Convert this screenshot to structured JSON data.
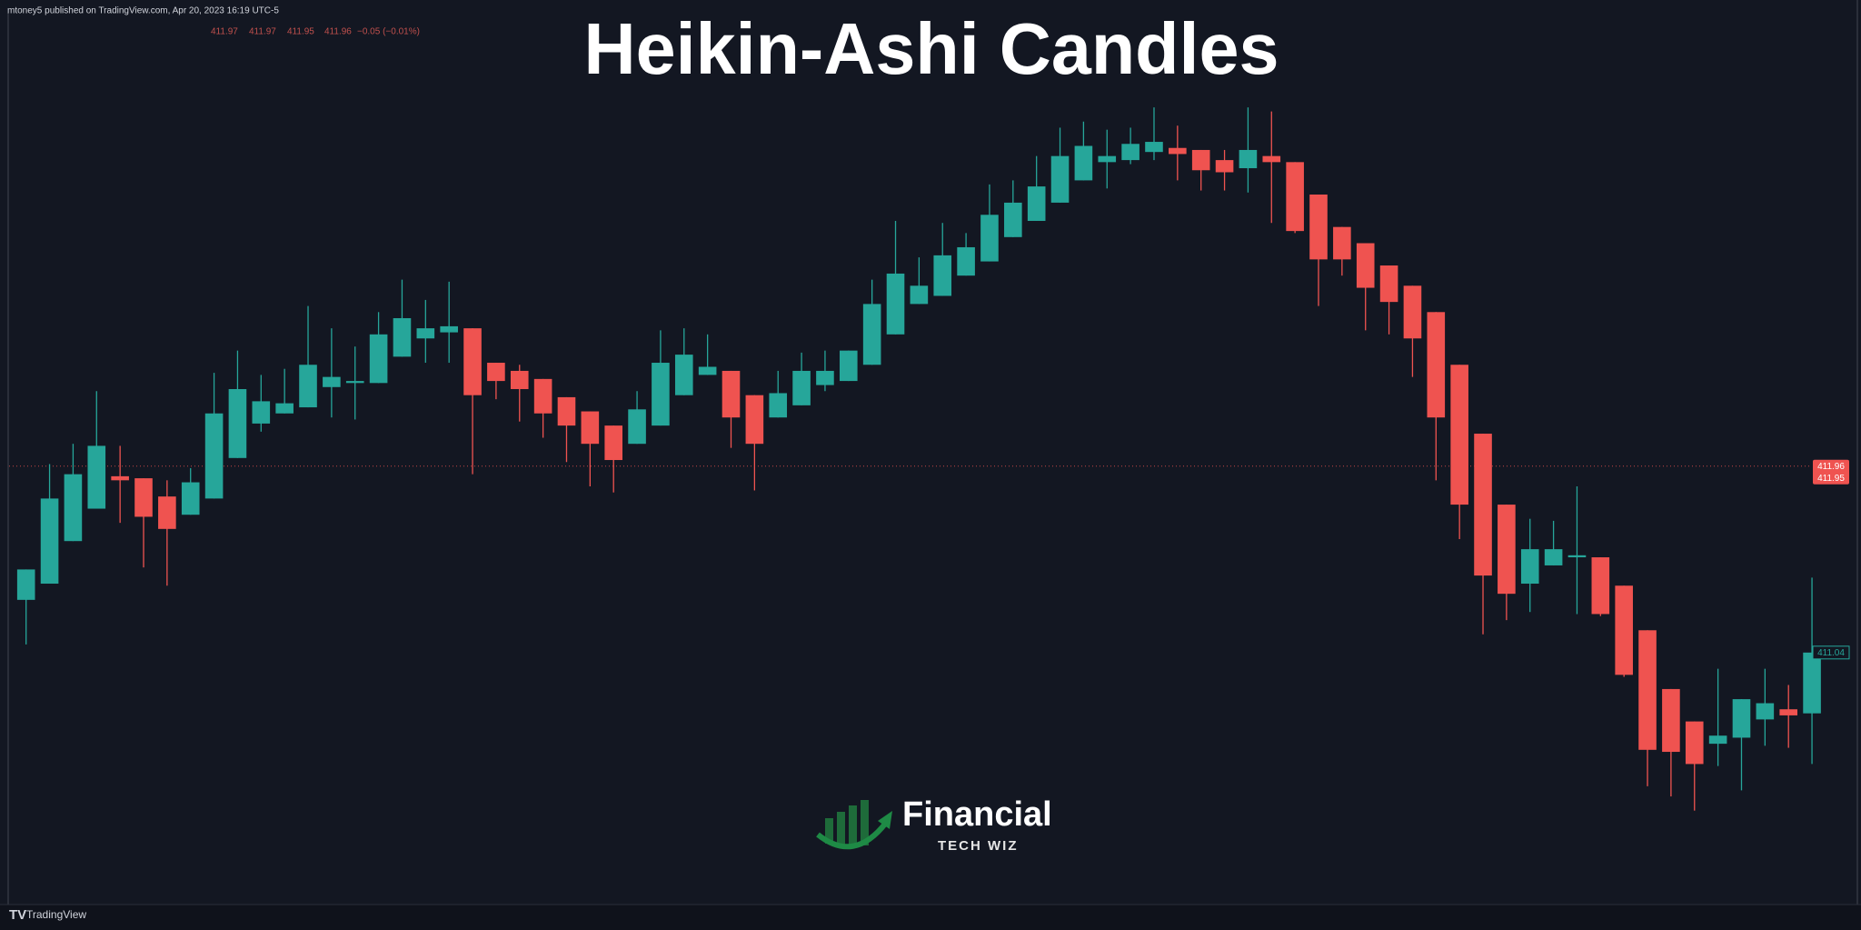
{
  "chart_data": {
    "type": "candlestick",
    "title": "Heikin-Ashi Candles",
    "publisher_note": "mtoney5 published on TradingView.com, Apr 20, 2023 16:19 UTC-5",
    "legend": {
      "open": 411.97,
      "high": 411.97,
      "low": 411.95,
      "close": 411.96,
      "change": "−0.05 (−0.01%)"
    },
    "open": [
      411.3,
      411.38,
      411.59,
      411.75,
      411.91,
      411.9,
      411.81,
      411.72,
      411.8,
      412.0,
      412.17,
      412.22,
      412.25,
      412.35,
      412.37,
      412.37,
      412.5,
      412.59,
      412.62,
      412.64,
      412.47,
      412.43,
      412.39,
      412.3,
      412.23,
      412.16,
      412.07,
      412.16,
      412.31,
      412.41,
      412.43,
      412.31,
      412.2,
      412.26,
      412.36,
      412.38,
      412.46,
      412.61,
      412.76,
      412.8,
      412.9,
      412.97,
      413.09,
      413.17,
      413.26,
      413.37,
      413.46,
      413.47,
      413.51,
      413.53,
      413.52,
      413.47,
      413.43,
      413.49,
      413.46,
      413.3,
      413.14,
      413.06,
      412.95,
      412.85,
      412.72,
      412.46,
      412.12,
      411.77,
      411.38,
      411.47,
      411.51,
      411.51,
      411.37,
      411.15,
      410.86,
      410.7,
      410.59,
      410.62,
      410.71,
      410.76,
      410.74
    ],
    "high": [
      411.45,
      411.97,
      412.07,
      412.33,
      412.06,
      411.9,
      411.89,
      411.95,
      412.42,
      412.53,
      412.41,
      412.44,
      412.75,
      412.64,
      412.55,
      412.72,
      412.88,
      412.78,
      412.87,
      412.64,
      412.47,
      412.46,
      412.39,
      412.3,
      412.23,
      412.16,
      412.33,
      412.63,
      412.64,
      412.61,
      412.43,
      412.31,
      412.43,
      412.52,
      412.53,
      412.53,
      412.88,
      413.17,
      412.99,
      413.16,
      413.11,
      413.35,
      413.37,
      413.49,
      413.63,
      413.66,
      413.62,
      413.63,
      413.73,
      413.64,
      413.52,
      413.52,
      413.73,
      413.71,
      413.46,
      413.3,
      413.14,
      413.06,
      412.95,
      412.85,
      412.72,
      412.46,
      412.12,
      411.77,
      411.7,
      411.69,
      411.86,
      411.51,
      411.37,
      411.15,
      410.86,
      410.7,
      410.96,
      410.81,
      410.96,
      410.88,
      411.41
    ],
    "low": [
      411.08,
      411.38,
      411.59,
      411.75,
      411.68,
      411.46,
      411.37,
      411.72,
      411.8,
      412.0,
      412.13,
      412.22,
      412.25,
      412.2,
      412.19,
      412.37,
      412.5,
      412.47,
      412.47,
      411.92,
      412.29,
      412.18,
      412.1,
      411.98,
      411.86,
      411.83,
      412.07,
      412.16,
      412.31,
      412.41,
      412.05,
      411.84,
      412.2,
      412.26,
      412.33,
      412.38,
      412.46,
      412.61,
      412.76,
      412.8,
      412.9,
      412.97,
      413.09,
      413.17,
      413.26,
      413.37,
      413.33,
      413.45,
      413.47,
      413.37,
      413.32,
      413.32,
      413.31,
      413.16,
      413.11,
      412.75,
      412.9,
      412.63,
      412.61,
      412.4,
      411.89,
      411.6,
      411.13,
      411.2,
      411.24,
      411.47,
      411.23,
      411.22,
      410.92,
      410.38,
      410.33,
      410.26,
      410.48,
      410.36,
      410.58,
      410.57,
      410.49
    ],
    "close": [
      411.45,
      411.8,
      411.92,
      412.06,
      411.89,
      411.71,
      411.65,
      411.88,
      412.22,
      412.34,
      412.28,
      412.27,
      412.46,
      412.4,
      412.38,
      412.61,
      412.69,
      412.64,
      412.65,
      412.31,
      412.38,
      412.34,
      412.22,
      412.16,
      412.07,
      411.99,
      412.24,
      412.47,
      412.51,
      412.45,
      412.2,
      412.07,
      412.32,
      412.43,
      412.43,
      412.53,
      412.76,
      412.91,
      412.85,
      413.0,
      413.04,
      413.2,
      413.26,
      413.34,
      413.49,
      413.54,
      413.49,
      413.55,
      413.56,
      413.5,
      413.42,
      413.41,
      413.52,
      413.46,
      413.12,
      412.98,
      412.98,
      412.84,
      412.77,
      412.59,
      412.2,
      411.77,
      411.42,
      411.33,
      411.55,
      411.55,
      411.52,
      411.23,
      410.93,
      410.56,
      410.55,
      410.49,
      410.63,
      410.81,
      410.79,
      410.73,
      411.04
    ],
    "up_color": "#26a69a",
    "down_color": "#ef5350",
    "ylim": [
      409.81,
      414.26
    ],
    "price_line": 411.96,
    "price_line_labels": [
      411.96,
      411.95
    ],
    "last_close_label": 411.04,
    "watermark": {
      "name": "Financial",
      "tagline": "TECH WIZ"
    },
    "footer": "TradingView"
  }
}
